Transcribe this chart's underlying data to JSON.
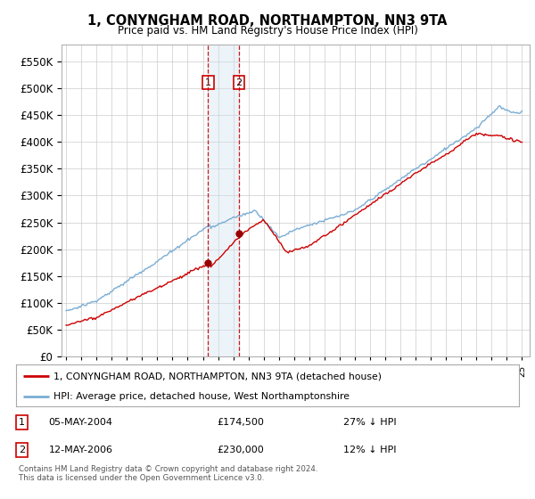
{
  "title": "1, CONYNGHAM ROAD, NORTHAMPTON, NN3 9TA",
  "subtitle": "Price paid vs. HM Land Registry's House Price Index (HPI)",
  "legend_line1": "1, CONYNGHAM ROAD, NORTHAMPTON, NN3 9TA (detached house)",
  "legend_line2": "HPI: Average price, detached house, West Northamptonshire",
  "table_rows": [
    {
      "num": "1",
      "date": "05-MAY-2004",
      "price": "£174,500",
      "hpi": "27% ↓ HPI"
    },
    {
      "num": "2",
      "date": "12-MAY-2006",
      "price": "£230,000",
      "hpi": "12% ↓ HPI"
    }
  ],
  "footer": "Contains HM Land Registry data © Crown copyright and database right 2024.\nThis data is licensed under the Open Government Licence v3.0.",
  "sale1_year": 2004.35,
  "sale2_year": 2006.37,
  "sale1_price": 174500,
  "sale2_price": 230000,
  "red_line_color": "#cc0000",
  "blue_line_color": "#7aadd4",
  "sale_marker_color": "#990000",
  "vline_color": "#cc0000",
  "shading_color": "#cce0f0",
  "grid_color": "#cccccc",
  "background_color": "#ffffff",
  "ylim_min": 0,
  "ylim_max": 580000,
  "xlim_min": 1994.7,
  "xlim_max": 2025.5
}
